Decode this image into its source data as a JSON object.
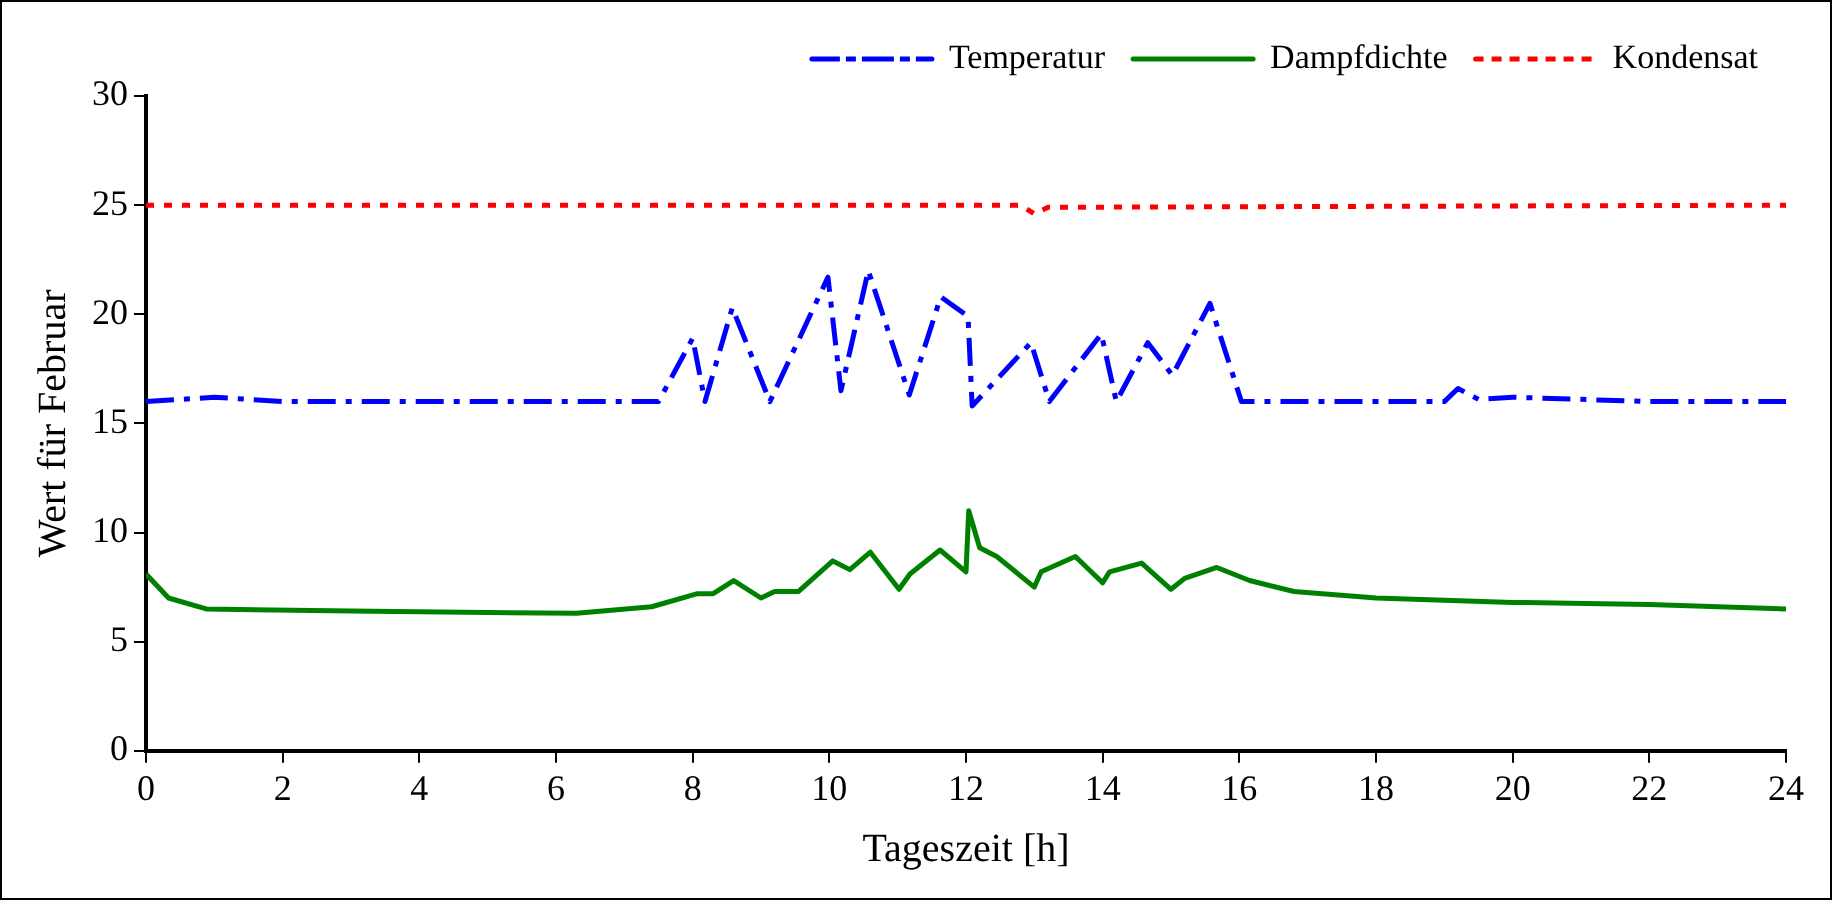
{
  "chart_data": {
    "type": "line",
    "xlabel": "Tageszeit [h]",
    "ylabel": "Wert für Februar",
    "xlim": [
      0,
      24
    ],
    "xticks": [
      0,
      2,
      4,
      6,
      8,
      10,
      12,
      14,
      16,
      18,
      20,
      22,
      24
    ],
    "ylim": [
      0,
      30
    ],
    "yticks": [
      0,
      5,
      10,
      15,
      20,
      25,
      30
    ],
    "grid": false,
    "legend": "top right",
    "marker": "none",
    "series": [
      {
        "name": "Temperatur",
        "color": "#0000ff",
        "line_style": "dashed",
        "x": [
          0,
          1,
          2,
          4,
          6,
          7.5,
          8.0,
          8.18,
          8.58,
          9.13,
          9.98,
          10.17,
          10.57,
          11.17,
          11.63,
          12.03,
          12.09,
          12.95,
          13.22,
          13.98,
          14.2,
          14.66,
          15.02,
          15.57,
          16.03,
          17,
          19,
          19.2,
          19.5,
          20,
          22,
          24
        ],
        "values": [
          16,
          16.2,
          16,
          16,
          16,
          16,
          18.9,
          16,
          20.3,
          16,
          21.7,
          16.5,
          22,
          16.3,
          20.8,
          19.9,
          15.8,
          18.7,
          16,
          19.1,
          16,
          18.7,
          17.2,
          20.5,
          16,
          16,
          16,
          16.6,
          16.1,
          16.2,
          16,
          16
        ]
      },
      {
        "name": "Dampfdichte",
        "color": "#008000",
        "line_style": "solid",
        "x": [
          0,
          0.33,
          0.88,
          3,
          6.3,
          7.4,
          8.07,
          8.3,
          8.6,
          9.0,
          9.2,
          9.55,
          10.05,
          10.3,
          10.6,
          11.02,
          11.18,
          11.62,
          12.0,
          12.04,
          12.2,
          12.45,
          13.0,
          13.1,
          13.6,
          14.0,
          14.1,
          14.57,
          15.0,
          15.2,
          15.67,
          16.15,
          16.8,
          18,
          20,
          22,
          24
        ],
        "values": [
          8.1,
          7.0,
          6.5,
          6.4,
          6.3,
          6.6,
          7.2,
          7.2,
          7.8,
          7.0,
          7.3,
          7.3,
          8.7,
          8.3,
          9.1,
          7.4,
          8.1,
          9.2,
          8.2,
          11.0,
          9.3,
          8.9,
          7.5,
          8.2,
          8.9,
          7.7,
          8.2,
          8.6,
          7.4,
          7.9,
          8.4,
          7.8,
          7.3,
          7.0,
          6.8,
          6.7,
          6.5
        ]
      },
      {
        "name": "Kondensat",
        "color": "#ff0000",
        "line_style": "dotted",
        "x": [
          0,
          12.8,
          13.0,
          13.2,
          24
        ],
        "values": [
          25,
          25,
          24.6,
          24.9,
          25
        ]
      }
    ]
  }
}
